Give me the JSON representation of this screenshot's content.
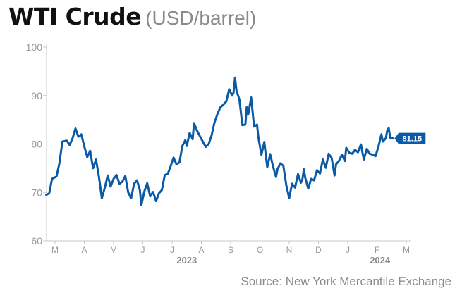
{
  "title": "WTI Crude",
  "unit": "(USD/barrel)",
  "source": "Source: New York Mercantile Exchange",
  "colors": {
    "line": "#0b5aa6",
    "badge": "#0b5aa6",
    "axis": "#c8c8c8",
    "tick_text": "#999999",
    "year_text": "#8a8a8a"
  },
  "chart_data": {
    "type": "line",
    "title": "WTI Crude",
    "ylabel": "(USD/barrel)",
    "xlabel": "",
    "ylim": [
      60,
      100
    ],
    "yticks": [
      60,
      70,
      80,
      90,
      100
    ],
    "grid": false,
    "months": [
      "M",
      "A",
      "M",
      "J",
      "J",
      "A",
      "S",
      "O",
      "N",
      "D",
      "J",
      "F",
      "M"
    ],
    "years": [
      {
        "label": "2023",
        "month_index": 4.5
      },
      {
        "label": "2024",
        "month_index": 11.1
      }
    ],
    "last_value_label": "81.15",
    "series": [
      {
        "values": [
          [
            -0.3,
            69.5
          ],
          [
            -0.2,
            69.8
          ],
          [
            -0.1,
            72.8
          ],
          [
            0.05,
            73.3
          ],
          [
            0.15,
            76.0
          ],
          [
            0.25,
            80.5
          ],
          [
            0.4,
            80.7
          ],
          [
            0.5,
            79.8
          ],
          [
            0.6,
            81.2
          ],
          [
            0.7,
            83.2
          ],
          [
            0.8,
            81.5
          ],
          [
            0.9,
            82.0
          ],
          [
            1.0,
            79.5
          ],
          [
            1.1,
            77.3
          ],
          [
            1.2,
            78.6
          ],
          [
            1.3,
            75.0
          ],
          [
            1.4,
            76.8
          ],
          [
            1.5,
            73.2
          ],
          [
            1.6,
            68.8
          ],
          [
            1.7,
            71.0
          ],
          [
            1.8,
            73.5
          ],
          [
            1.9,
            71.2
          ],
          [
            2.0,
            72.8
          ],
          [
            2.1,
            73.6
          ],
          [
            2.2,
            71.8
          ],
          [
            2.3,
            72.2
          ],
          [
            2.4,
            73.4
          ],
          [
            2.5,
            70.0
          ],
          [
            2.6,
            68.8
          ],
          [
            2.7,
            71.8
          ],
          [
            2.8,
            72.5
          ],
          [
            2.9,
            70.5
          ],
          [
            2.95,
            67.4
          ],
          [
            3.05,
            70.2
          ],
          [
            3.15,
            71.9
          ],
          [
            3.25,
            69.2
          ],
          [
            3.35,
            70.1
          ],
          [
            3.45,
            68.2
          ],
          [
            3.55,
            69.8
          ],
          [
            3.65,
            70.5
          ],
          [
            3.75,
            73.6
          ],
          [
            3.85,
            73.8
          ],
          [
            3.95,
            75.4
          ],
          [
            4.05,
            77.2
          ],
          [
            4.15,
            75.8
          ],
          [
            4.25,
            76.2
          ],
          [
            4.35,
            79.6
          ],
          [
            4.45,
            80.8
          ],
          [
            4.5,
            79.6
          ],
          [
            4.6,
            82.3
          ],
          [
            4.7,
            81.0
          ],
          [
            4.75,
            84.3
          ],
          [
            4.85,
            82.8
          ],
          [
            4.95,
            81.6
          ],
          [
            5.05,
            80.5
          ],
          [
            5.15,
            79.4
          ],
          [
            5.25,
            80.0
          ],
          [
            5.35,
            81.8
          ],
          [
            5.45,
            84.5
          ],
          [
            5.55,
            86.2
          ],
          [
            5.65,
            87.6
          ],
          [
            5.75,
            88.1
          ],
          [
            5.85,
            88.8
          ],
          [
            5.95,
            91.3
          ],
          [
            6.05,
            90.0
          ],
          [
            6.1,
            90.6
          ],
          [
            6.15,
            93.7
          ],
          [
            6.2,
            91.0
          ],
          [
            6.3,
            89.2
          ],
          [
            6.4,
            83.9
          ],
          [
            6.5,
            84.0
          ],
          [
            6.55,
            87.6
          ],
          [
            6.6,
            86.1
          ],
          [
            6.7,
            89.6
          ],
          [
            6.8,
            83.6
          ],
          [
            6.9,
            84.0
          ],
          [
            6.95,
            81.3
          ],
          [
            7.05,
            77.8
          ],
          [
            7.15,
            80.4
          ],
          [
            7.25,
            75.2
          ],
          [
            7.35,
            77.9
          ],
          [
            7.45,
            75.3
          ],
          [
            7.55,
            73.2
          ],
          [
            7.6,
            74.8
          ],
          [
            7.7,
            76.0
          ],
          [
            7.8,
            75.5
          ],
          [
            7.9,
            71.5
          ],
          [
            8.0,
            68.8
          ],
          [
            8.05,
            70.4
          ],
          [
            8.1,
            71.8
          ],
          [
            8.2,
            71.0
          ],
          [
            8.3,
            73.8
          ],
          [
            8.4,
            72.0
          ],
          [
            8.45,
            72.7
          ],
          [
            8.5,
            74.8
          ],
          [
            8.55,
            73.0
          ],
          [
            8.65,
            70.8
          ],
          [
            8.75,
            72.8
          ],
          [
            8.85,
            72.5
          ],
          [
            8.95,
            74.6
          ],
          [
            9.05,
            73.9
          ],
          [
            9.15,
            76.8
          ],
          [
            9.25,
            75.1
          ],
          [
            9.35,
            78.0
          ],
          [
            9.45,
            77.1
          ],
          [
            9.55,
            73.5
          ],
          [
            9.6,
            75.8
          ],
          [
            9.7,
            76.5
          ],
          [
            9.8,
            77.8
          ],
          [
            9.9,
            76.5
          ],
          [
            9.95,
            79.2
          ],
          [
            10.05,
            78.2
          ],
          [
            10.15,
            78.0
          ],
          [
            10.25,
            78.8
          ],
          [
            10.35,
            78.3
          ],
          [
            10.45,
            79.9
          ],
          [
            10.55,
            76.8
          ],
          [
            10.65,
            79.0
          ],
          [
            10.75,
            78.0
          ],
          [
            10.85,
            77.8
          ],
          [
            10.95,
            77.5
          ],
          [
            11.05,
            79.5
          ],
          [
            11.15,
            82.0
          ],
          [
            11.2,
            80.5
          ],
          [
            11.3,
            81.2
          ],
          [
            11.35,
            82.8
          ],
          [
            11.4,
            83.3
          ],
          [
            11.45,
            81.3
          ],
          [
            11.55,
            81.15
          ]
        ]
      }
    ]
  }
}
